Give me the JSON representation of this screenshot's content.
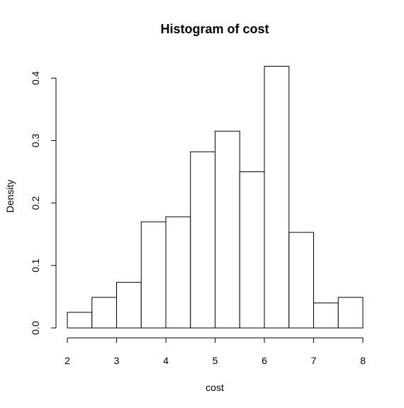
{
  "chart_data": {
    "type": "bar",
    "title": "Histogram of cost",
    "xlabel": "cost",
    "ylabel": "Density",
    "xlim": [
      2,
      8
    ],
    "ylim": [
      0,
      0.42
    ],
    "x_ticks": [
      2,
      3,
      4,
      5,
      6,
      7,
      8
    ],
    "x_tick_labels": [
      "2",
      "3",
      "4",
      "5",
      "6",
      "7",
      "8"
    ],
    "y_ticks": [
      0,
      0.1,
      0.2,
      0.3,
      0.4
    ],
    "y_tick_labels": [
      "0.0",
      "0.1",
      "0.2",
      "0.3",
      "0.4"
    ],
    "bins": [
      {
        "x0": 2.0,
        "x1": 2.5,
        "density": 0.025
      },
      {
        "x0": 2.5,
        "x1": 3.0,
        "density": 0.049
      },
      {
        "x0": 3.0,
        "x1": 3.5,
        "density": 0.073
      },
      {
        "x0": 3.5,
        "x1": 4.0,
        "density": 0.17
      },
      {
        "x0": 4.0,
        "x1": 4.5,
        "density": 0.178
      },
      {
        "x0": 4.5,
        "x1": 5.0,
        "density": 0.282
      },
      {
        "x0": 5.0,
        "x1": 5.5,
        "density": 0.315
      },
      {
        "x0": 5.5,
        "x1": 6.0,
        "density": 0.25
      },
      {
        "x0": 6.0,
        "x1": 6.5,
        "density": 0.419
      },
      {
        "x0": 6.5,
        "x1": 7.0,
        "density": 0.153
      },
      {
        "x0": 7.0,
        "x1": 7.5,
        "density": 0.04
      },
      {
        "x0": 7.5,
        "x1": 8.0,
        "density": 0.049
      }
    ],
    "grid": false,
    "bar_fill": "#ffffff",
    "bar_stroke": "#000000"
  }
}
